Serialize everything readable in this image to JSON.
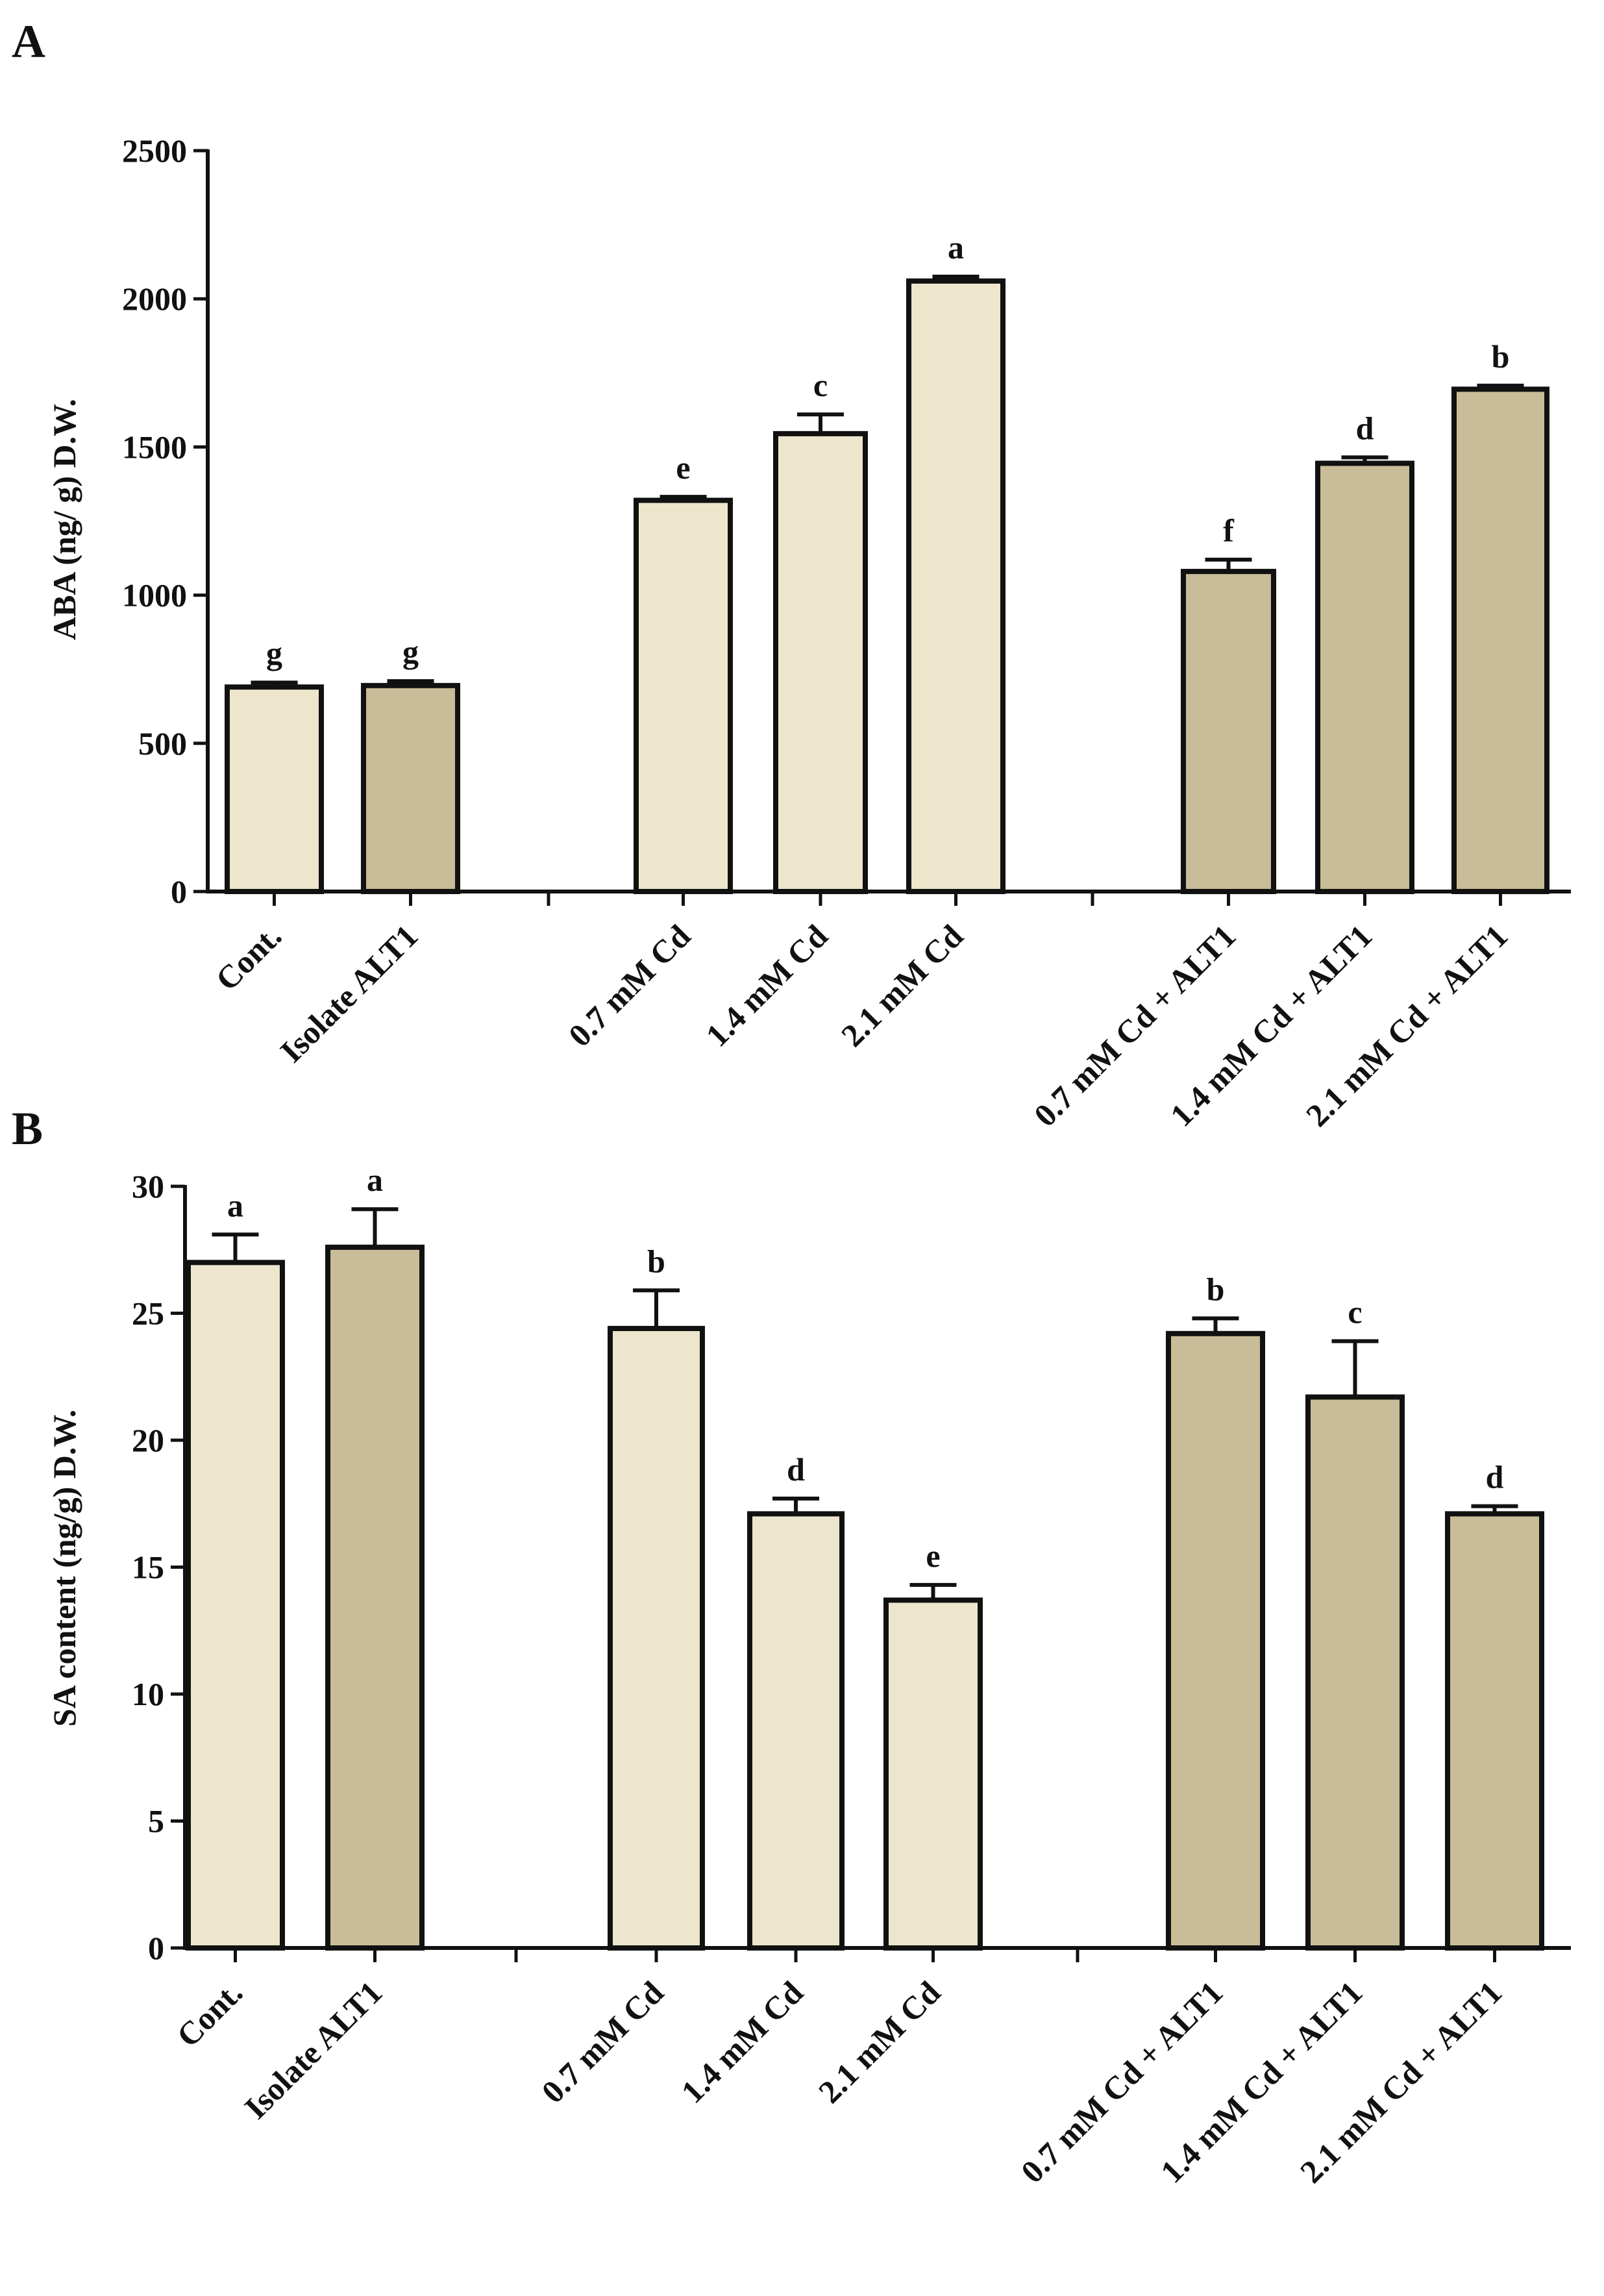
{
  "chart_data": [
    {
      "panel": "A",
      "type": "bar",
      "ylabel": "ABA (ng/ g) D.W.",
      "ylim": [
        0,
        2500
      ],
      "yticks": [
        0,
        500,
        1000,
        1500,
        2000,
        2500
      ],
      "colors": {
        "light": "#EEE6CC",
        "dark": "#C8BD98",
        "stroke": "#111111"
      },
      "bars": [
        {
          "category": "Cont.",
          "value": 690,
          "error": 15,
          "letter": "g",
          "fill": "light"
        },
        {
          "category": "Isolate ALT1",
          "value": 695,
          "error": 15,
          "letter": "g",
          "fill": "dark"
        },
        {
          "category": "0.7 mM Cd",
          "value": 1320,
          "error": 12,
          "letter": "e",
          "fill": "light"
        },
        {
          "category": "1.4 mM Cd",
          "value": 1545,
          "error": 65,
          "letter": "c",
          "fill": "light"
        },
        {
          "category": "2.1 mM Cd",
          "value": 2060,
          "error": 15,
          "letter": "a",
          "fill": "light"
        },
        {
          "category": "0.7 mM Cd + ALT1",
          "value": 1080,
          "error": 40,
          "letter": "f",
          "fill": "dark"
        },
        {
          "category": "1.4 mM Cd + ALT1",
          "value": 1445,
          "error": 20,
          "letter": "d",
          "fill": "dark"
        },
        {
          "category": "2.1 mM Cd + ALT1",
          "value": 1695,
          "error": 12,
          "letter": "b",
          "fill": "dark"
        }
      ]
    },
    {
      "panel": "B",
      "type": "bar",
      "ylabel": "SA content (ng/g) D.W.",
      "ylim": [
        0,
        30
      ],
      "yticks": [
        0,
        5,
        10,
        15,
        20,
        25,
        30
      ],
      "colors": {
        "light": "#EEE6CC",
        "dark": "#C8BD98",
        "stroke": "#111111"
      },
      "bars": [
        {
          "category": "Cont.",
          "value": 27.0,
          "error": 1.1,
          "letter": "a",
          "fill": "light"
        },
        {
          "category": "Isolate ALT1",
          "value": 27.6,
          "error": 1.5,
          "letter": "a",
          "fill": "dark"
        },
        {
          "category": "0.7 mM Cd",
          "value": 24.4,
          "error": 1.5,
          "letter": "b",
          "fill": "light"
        },
        {
          "category": "1.4 mM Cd",
          "value": 17.1,
          "error": 0.6,
          "letter": "d",
          "fill": "light"
        },
        {
          "category": "2.1 mM Cd",
          "value": 13.7,
          "error": 0.6,
          "letter": "e",
          "fill": "light"
        },
        {
          "category": "0.7 mM Cd + ALT1",
          "value": 24.2,
          "error": 0.6,
          "letter": "b",
          "fill": "dark"
        },
        {
          "category": "1.4 mM Cd + ALT1",
          "value": 21.7,
          "error": 2.2,
          "letter": "c",
          "fill": "dark"
        },
        {
          "category": "2.1 mM Cd + ALT1",
          "value": 17.1,
          "error": 0.3,
          "letter": "d",
          "fill": "dark"
        }
      ]
    }
  ]
}
